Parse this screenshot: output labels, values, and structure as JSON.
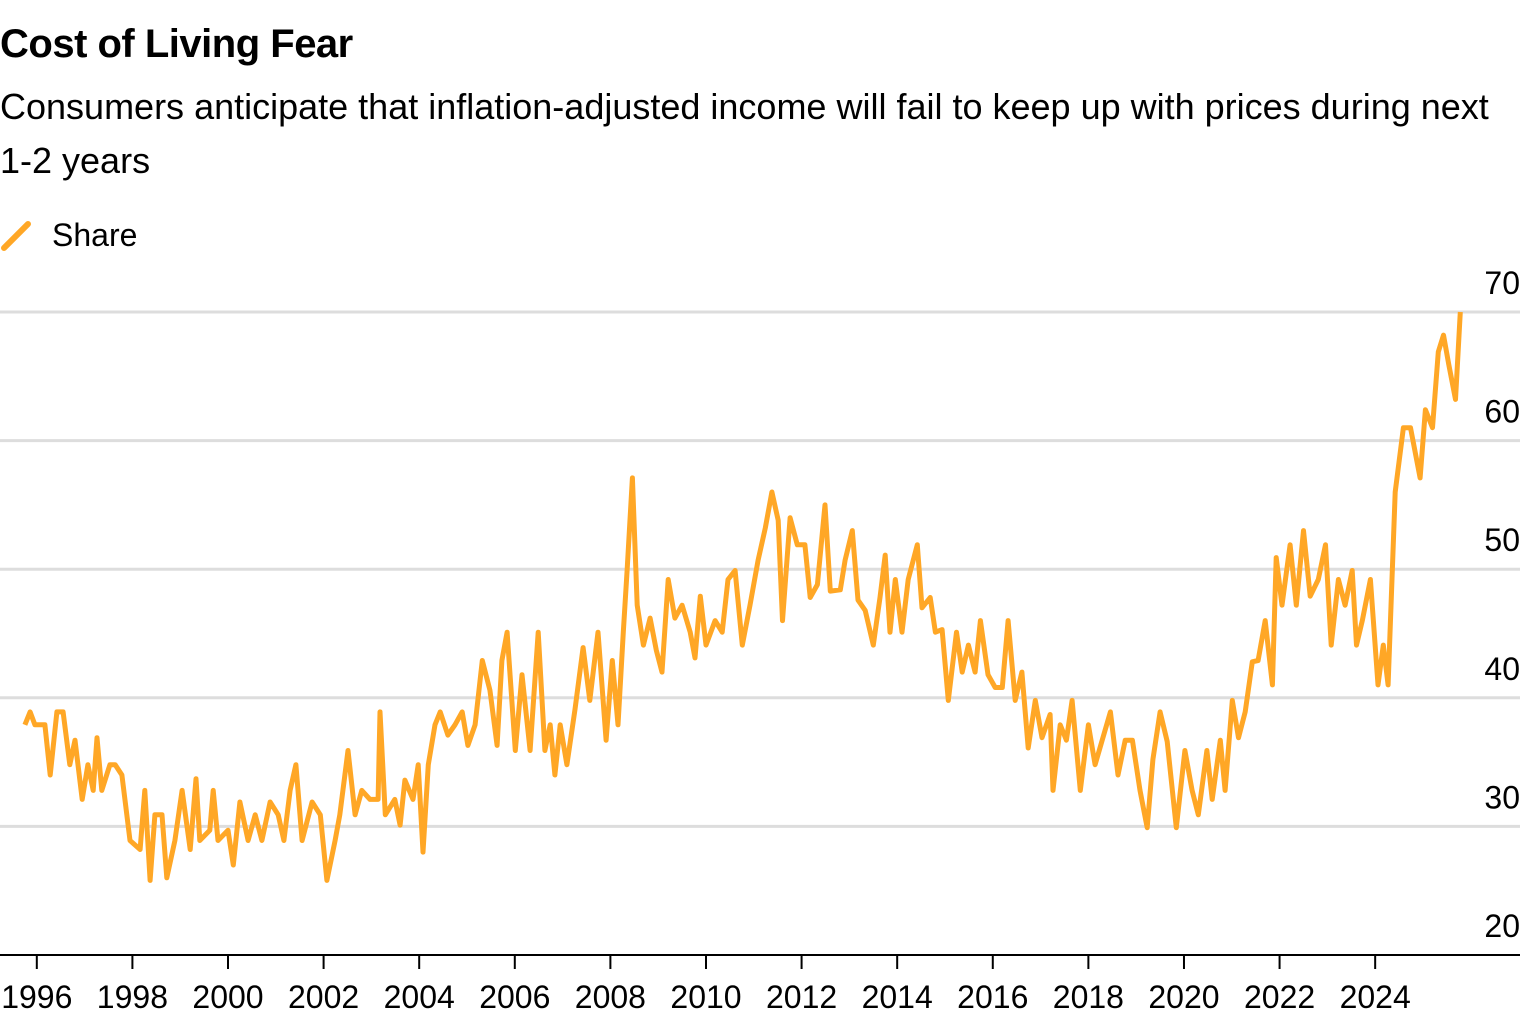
{
  "chart_data": {
    "type": "line",
    "title": "Cost of Living Fear",
    "subtitle": "Consumers anticipate that inflation-adjusted income will fail to keep up with prices during next 1-2 years",
    "x": [
      1995.75,
      1995.86,
      1995.96,
      1996.17,
      1996.28,
      1996.42,
      1996.55,
      1996.69,
      1996.8,
      1996.95,
      1997.07,
      1997.18,
      1997.26,
      1997.36,
      1997.53,
      1997.64,
      1997.78,
      1997.95,
      1998.16,
      1998.26,
      1998.37,
      1998.47,
      1998.62,
      1998.72,
      1998.89,
      1999.04,
      1999.21,
      1999.33,
      1999.41,
      1999.62,
      1999.69,
      1999.79,
      2000.0,
      2000.11,
      2000.25,
      2000.42,
      2000.57,
      2000.71,
      2000.88,
      2001.05,
      2001.17,
      2001.3,
      2001.42,
      2001.55,
      2001.76,
      2001.93,
      2002.07,
      2002.24,
      2002.34,
      2002.51,
      2002.66,
      2002.8,
      2002.97,
      2003.14,
      2003.18,
      2003.29,
      2003.49,
      2003.6,
      2003.7,
      2003.87,
      2003.98,
      2004.08,
      2004.19,
      2004.33,
      2004.44,
      2004.6,
      2004.75,
      2004.9,
      2005.02,
      2005.17,
      2005.32,
      2005.48,
      2005.63,
      2005.73,
      2005.84,
      2006.01,
      2006.15,
      2006.32,
      2006.49,
      2006.63,
      2006.74,
      2006.84,
      2006.95,
      2007.09,
      2007.26,
      2007.43,
      2007.57,
      2007.74,
      2007.91,
      2008.04,
      2008.16,
      2008.27,
      2008.35,
      2008.46,
      2008.56,
      2008.69,
      2008.83,
      2008.96,
      2009.08,
      2009.21,
      2009.35,
      2009.5,
      2009.67,
      2009.77,
      2009.88,
      2010.0,
      2010.19,
      2010.34,
      2010.46,
      2010.61,
      2010.76,
      2010.92,
      2011.09,
      2011.24,
      2011.38,
      2011.51,
      2011.6,
      2011.76,
      2011.91,
      2012.07,
      2012.18,
      2012.33,
      2012.49,
      2012.6,
      2012.81,
      2012.91,
      2013.06,
      2013.18,
      2013.33,
      2013.5,
      2013.64,
      2013.75,
      2013.85,
      2013.96,
      2014.1,
      2014.23,
      2014.42,
      2014.52,
      2014.69,
      2014.8,
      2014.94,
      2015.07,
      2015.24,
      2015.36,
      2015.49,
      2015.63,
      2015.74,
      2015.9,
      2016.05,
      2016.2,
      2016.32,
      2016.47,
      2016.61,
      2016.74,
      2016.89,
      2017.03,
      2017.2,
      2017.26,
      2017.41,
      2017.54,
      2017.66,
      2017.83,
      2018.0,
      2018.14,
      2018.29,
      2018.46,
      2018.62,
      2018.77,
      2018.92,
      2019.08,
      2019.23,
      2019.35,
      2019.5,
      2019.65,
      2019.84,
      2020.02,
      2020.17,
      2020.3,
      2020.48,
      2020.59,
      2020.76,
      2020.86,
      2021.01,
      2021.14,
      2021.28,
      2021.43,
      2021.55,
      2021.7,
      2021.85,
      2021.93,
      2022.05,
      2022.22,
      2022.35,
      2022.5,
      2022.64,
      2022.81,
      2022.96,
      2023.08,
      2023.23,
      2023.37,
      2023.52,
      2023.61,
      2023.73,
      2023.9,
      2024.06,
      2024.17,
      2024.27,
      2024.42,
      2024.59,
      2024.74,
      2024.94,
      2025.05,
      2025.2,
      2025.32,
      2025.43,
      2025.54,
      2025.68,
      2025.78
    ],
    "series": [
      {
        "name": "Share",
        "color": "#ffa726",
        "values": [
          37.9,
          38.9,
          37.9,
          37.9,
          34.0,
          38.9,
          38.9,
          34.8,
          36.7,
          32.1,
          34.8,
          32.8,
          36.9,
          32.8,
          34.8,
          34.8,
          34.0,
          28.9,
          28.2,
          32.8,
          25.8,
          30.9,
          30.9,
          26.0,
          28.9,
          32.8,
          28.2,
          33.7,
          28.9,
          29.7,
          32.8,
          28.9,
          29.7,
          27.0,
          31.9,
          28.9,
          30.9,
          28.9,
          31.9,
          30.9,
          28.9,
          32.8,
          34.8,
          28.9,
          31.9,
          30.9,
          25.8,
          28.9,
          30.9,
          35.9,
          30.9,
          32.8,
          32.1,
          32.1,
          38.9,
          30.9,
          32.1,
          30.1,
          33.6,
          32.1,
          34.8,
          28.0,
          34.8,
          37.9,
          38.9,
          37.1,
          37.9,
          38.9,
          36.3,
          37.9,
          42.9,
          40.6,
          36.3,
          42.9,
          45.1,
          35.9,
          41.8,
          35.9,
          45.1,
          35.9,
          37.9,
          34.0,
          37.9,
          34.8,
          39.1,
          43.9,
          39.8,
          45.1,
          36.7,
          42.9,
          37.9,
          45.1,
          49.9,
          57.1,
          47.2,
          44.1,
          46.2,
          43.7,
          42.0,
          49.2,
          46.2,
          47.2,
          45.1,
          43.1,
          47.9,
          44.1,
          46.0,
          45.1,
          49.2,
          49.9,
          44.1,
          47.2,
          50.7,
          53.2,
          56.0,
          53.8,
          46.0,
          54.0,
          51.9,
          51.9,
          47.8,
          48.8,
          55.0,
          48.3,
          48.4,
          50.7,
          53.0,
          47.6,
          46.8,
          44.1,
          47.8,
          51.1,
          45.1,
          49.2,
          45.1,
          49.2,
          51.9,
          47.0,
          47.8,
          45.1,
          45.3,
          39.8,
          45.1,
          42.0,
          44.1,
          42.0,
          46.0,
          41.8,
          40.8,
          40.8,
          46.0,
          39.8,
          42.0,
          36.1,
          39.8,
          36.9,
          38.7,
          32.8,
          37.9,
          36.7,
          39.8,
          32.8,
          37.9,
          34.8,
          36.7,
          38.9,
          34.0,
          36.7,
          36.7,
          32.8,
          29.9,
          35.2,
          38.9,
          36.6,
          29.9,
          35.9,
          32.8,
          30.9,
          35.9,
          32.1,
          36.7,
          32.8,
          39.8,
          36.9,
          38.9,
          42.8,
          42.9,
          46.0,
          41.0,
          50.9,
          47.2,
          51.9,
          47.2,
          53.0,
          47.9,
          49.2,
          51.9,
          44.1,
          49.2,
          47.2,
          49.9,
          44.1,
          46.0,
          49.2,
          41.0,
          44.1,
          41.0,
          56.0,
          61.0,
          61.0,
          57.1,
          62.4,
          61.0,
          66.9,
          68.2,
          65.9,
          63.2,
          70.0
        ]
      }
    ],
    "xlim": [
      1995.23,
      2027.03
    ],
    "xticks": [
      1996,
      1998,
      2000,
      2002,
      2004,
      2006,
      2008,
      2010,
      2012,
      2014,
      2016,
      2018,
      2020,
      2022,
      2024
    ],
    "ylim": [
      20,
      70
    ],
    "yticks": [
      20,
      30,
      40,
      50,
      60,
      70
    ],
    "grid": true
  }
}
